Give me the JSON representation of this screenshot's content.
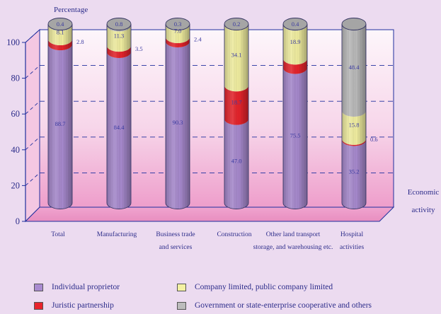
{
  "chart_data": {
    "type": "bar",
    "stacked": true,
    "ylabel": "Percentage",
    "xlabel": "Economic activity",
    "ylim": [
      0,
      100
    ],
    "yticks": [
      0,
      20,
      40,
      60,
      80,
      100
    ],
    "categories": [
      [
        "Total"
      ],
      [
        "Manufacturing"
      ],
      [
        "Business trade",
        "and services"
      ],
      [
        "Construction"
      ],
      [
        "Other land transport",
        "storage, and warehousing etc."
      ],
      [
        "Hospital",
        "activities"
      ]
    ],
    "series": [
      {
        "name": "Individual proprietor",
        "color": "#a98bd0",
        "values": [
          88.7,
          84.4,
          90.3,
          47.0,
          75.5,
          35.2
        ]
      },
      {
        "name": "Juristic partnership",
        "color": "#e8242c",
        "values": [
          2.8,
          3.5,
          2.4,
          18.7,
          5.2,
          0.6
        ]
      },
      {
        "name": "Company limited, public company limited",
        "color": "#f4f1a2",
        "values": [
          8.1,
          11.3,
          7.0,
          34.1,
          18.9,
          15.8
        ]
      },
      {
        "name": "Government or state-enterprise cooperative and others",
        "color": "#bcbcbc",
        "values": [
          0.4,
          0.8,
          0.3,
          0.2,
          0.4,
          48.4
        ]
      }
    ],
    "data_labels": [
      [
        {
          "t": "88.7",
          "s": 0
        },
        {
          "t": "2.8",
          "s": 1,
          "pos": "right"
        },
        {
          "t": "8.1",
          "s": 2
        },
        {
          "t": "0.4",
          "s": 3
        }
      ],
      [
        {
          "t": "84.4",
          "s": 0
        },
        {
          "t": "3.5",
          "s": 1,
          "pos": "right"
        },
        {
          "t": "11.3",
          "s": 2
        },
        {
          "t": "0.8",
          "s": 3
        }
      ],
      [
        {
          "t": "90.3",
          "s": 0
        },
        {
          "t": "2.4",
          "s": 1,
          "pos": "right"
        },
        {
          "t": "7.0",
          "s": 2
        },
        {
          "t": "0.3",
          "s": 3
        }
      ],
      [
        {
          "t": "47.0",
          "s": 0
        },
        {
          "t": "18.7",
          "s": 1
        },
        {
          "t": "34.1",
          "s": 2
        },
        {
          "t": "0.2",
          "s": 3
        }
      ],
      [
        {
          "t": "75.5",
          "s": 0
        },
        {
          "t": "18.9",
          "s": 2
        },
        {
          "t": "0.4",
          "s": 3
        }
      ],
      [
        {
          "t": "35.2",
          "s": 0
        },
        {
          "t": "0.6",
          "s": 1,
          "pos": "right"
        },
        {
          "t": "15.8",
          "s": 2
        },
        {
          "t": "48.4",
          "s": 3
        }
      ]
    ],
    "legend_position": "bottom",
    "grid": true
  },
  "legend": [
    {
      "label": "Individual proprietor",
      "color": "#a98bd0"
    },
    {
      "label": "Company limited, public company limited",
      "color": "#f4f1a2"
    },
    {
      "label": "Juristic partnership",
      "color": "#e8242c"
    },
    {
      "label": "Government or state-enterprise cooperative and others",
      "color": "#bcbcbc"
    }
  ]
}
